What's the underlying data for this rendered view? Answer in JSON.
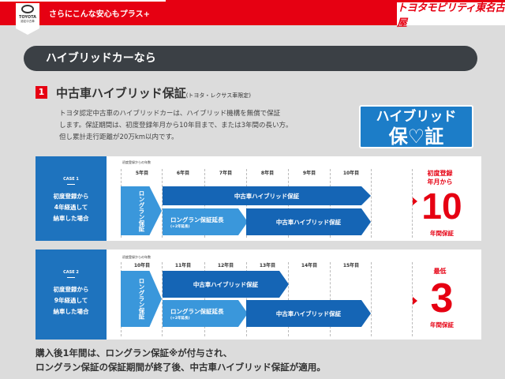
{
  "header": {
    "tagline": "さらにこんな安心もプラス+",
    "logo_text": "TOYOTA",
    "logo_sub": "認定中古車",
    "brand": "トヨタモビリティ東名古屋",
    "accent": "#e60012"
  },
  "section": {
    "title": "ハイブリッドカーなら"
  },
  "item": {
    "number": "1",
    "title": "中古車ハイブリッド保証",
    "note": "(トヨタ・レクサス車限定)",
    "lines": [
      "トヨタ認定中古車のハイブリッドカーは、ハイブリッド機構を無償で保証",
      "します。保証期間は、初度登録年月から10年目まで、または3年間の長い方。",
      "但し累計走行距離が20万km以内です。"
    ]
  },
  "badge": {
    "line1": "ハイブリッド",
    "line2": "保♡証",
    "color": "#1c7dc8"
  },
  "cases": [
    {
      "label": "CASE 1",
      "desc": [
        "初度登録から",
        "4年経過して",
        "納車した場合"
      ],
      "caption": "初度登録からの年数",
      "years": [
        "5年目",
        "6年目",
        "7年目",
        "8年目",
        "9年目",
        "10年目"
      ],
      "longrun": "ロングラン保証",
      "hybrid": "中古車ハイブリッド保証",
      "ext": "ロングラン保証延長",
      "ext_note": "(+2年延長)",
      "hybrid2": "中古車ハイブリッド保証",
      "result_top": "初度登録年月から",
      "result_num": "10",
      "result_bottom": "年間保証"
    },
    {
      "label": "CASE 2",
      "desc": [
        "初度登録から",
        "9年経過して",
        "納車した場合"
      ],
      "caption": "初度登録からの年数",
      "years": [
        "10年目",
        "11年目",
        "12年目",
        "13年目",
        "14年目",
        "15年目"
      ],
      "longrun": "ロングラン保証",
      "hybrid": "中古車ハイブリッド保証",
      "ext": "ロングラン保証延長",
      "ext_note": "(+2年延長)",
      "hybrid2": "中古車ハイブリッド保証",
      "result_top": "最低",
      "result_num": "3",
      "result_bottom": "年間保証"
    }
  ],
  "footer": [
    "購入後1年間は、ロングラン保証※が付与され、",
    "ロングラン保証の保証期間が終了後、中古車ハイブリッド保証が適用。"
  ]
}
